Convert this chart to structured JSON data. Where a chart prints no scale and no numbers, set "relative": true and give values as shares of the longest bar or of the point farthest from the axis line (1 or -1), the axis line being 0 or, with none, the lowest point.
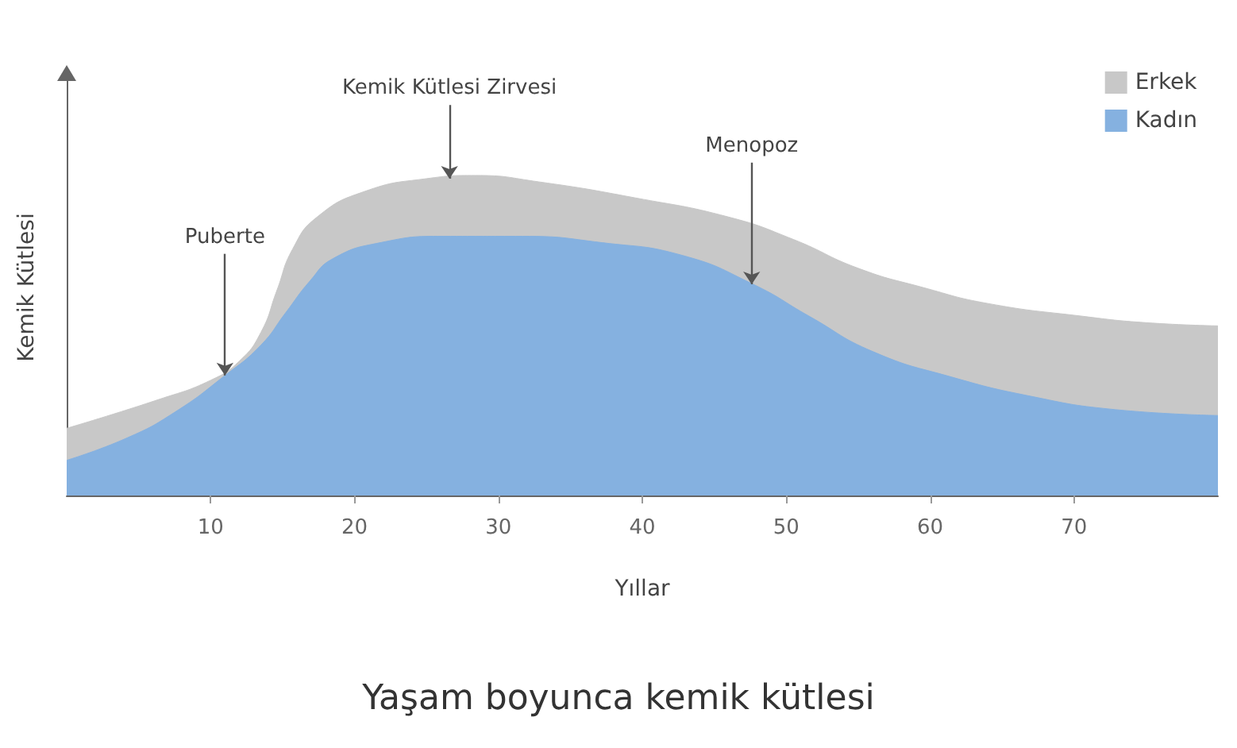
{
  "chart_data": {
    "type": "area",
    "title": "Yaşam boyunca kemik kütlesi",
    "xlabel": "Yıllar",
    "ylabel": "Kemik Kütlesi",
    "relative": true,
    "xlim": [
      0,
      80
    ],
    "xticks": [
      10,
      20,
      30,
      40,
      50,
      60,
      70
    ],
    "grid": false,
    "legend": "top right",
    "marker": "none",
    "annotations": [
      {
        "text": "Puberte",
        "x": 11,
        "y": 0.375
      },
      {
        "text": "Kemik Kütlesi Zirvesi",
        "x": 26.6,
        "y": 0.99
      },
      {
        "text": "Menopoz",
        "x": 47.6,
        "y": 0.66
      }
    ],
    "series": [
      {
        "name": "Erkek",
        "color": "#c8c8c8",
        "x": [
          0,
          6.4,
          10,
          12,
          13.5,
          14.6,
          15.7,
          17.4,
          20.7,
          25,
          28.4,
          32.8,
          39.5,
          46,
          50.5,
          55,
          59.5,
          64,
          70.6,
          75,
          80
        ],
        "values": [
          0.21,
          0.3,
          0.36,
          0.42,
          0.51,
          0.64,
          0.77,
          0.87,
          0.95,
          0.99,
          1,
          0.98,
          0.93,
          0.87,
          0.8,
          0.71,
          0.65,
          0.6,
          0.56,
          0.54,
          0.53
        ]
      },
      {
        "name": "Kadın",
        "color": "#85b1e0",
        "x": [
          0,
          4.2,
          7.5,
          11,
          13.5,
          15.2,
          16.9,
          18.5,
          21.8,
          26.2,
          31.7,
          37.2,
          42.8,
          47.7,
          51.6,
          56,
          61.5,
          67,
          72.5,
          80
        ],
        "values": [
          0.11,
          0.18,
          0.26,
          0.375,
          0.47,
          0.57,
          0.67,
          0.74,
          0.79,
          0.81,
          0.81,
          0.79,
          0.75,
          0.66,
          0.56,
          0.45,
          0.37,
          0.31,
          0.27,
          0.25
        ]
      }
    ]
  }
}
